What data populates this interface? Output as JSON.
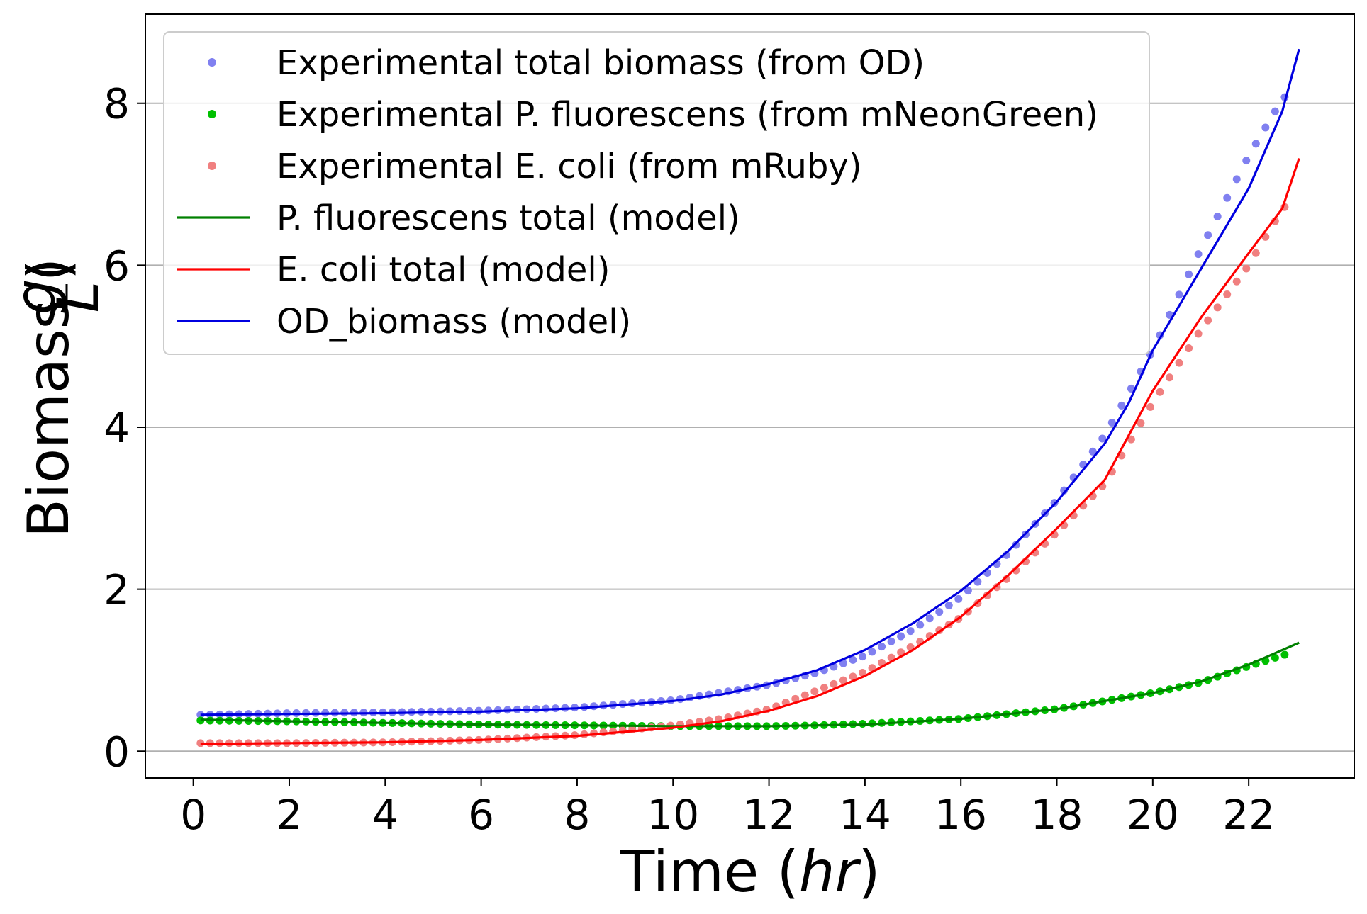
{
  "chart_data": {
    "type": "line",
    "title": "",
    "xlabel": {
      "text": "Time (",
      "italic": "hr",
      "close": ")"
    },
    "ylabel": {
      "text": "Biomass (",
      "numerator": "g",
      "denominator": "L",
      "close": ")"
    },
    "xlim": [
      -1,
      24.2
    ],
    "ylim": [
      -0.33,
      9.1
    ],
    "xticks": [
      0,
      2,
      4,
      6,
      8,
      10,
      12,
      14,
      16,
      18,
      20,
      22
    ],
    "yticks": [
      0,
      2,
      4,
      6,
      8
    ],
    "grid": "y",
    "legend": "top-left",
    "scatter_series": [
      {
        "name": "Experimental total biomass (from OD)",
        "color": "#8080f0",
        "anchors": [
          [
            0.15,
            0.45
          ],
          [
            2,
            0.47
          ],
          [
            4,
            0.48
          ],
          [
            6,
            0.5
          ],
          [
            8,
            0.54
          ],
          [
            10,
            0.63
          ],
          [
            12,
            0.82
          ],
          [
            13,
            0.97
          ],
          [
            14,
            1.18
          ],
          [
            15,
            1.5
          ],
          [
            16,
            1.9
          ],
          [
            17,
            2.45
          ],
          [
            18,
            3.1
          ],
          [
            19,
            3.9
          ],
          [
            20,
            4.95
          ],
          [
            21,
            6.2
          ],
          [
            22,
            7.35
          ],
          [
            22.6,
            7.95
          ],
          [
            22.9,
            8.2
          ]
        ]
      },
      {
        "name": "Experimental P. fluorescens (from mNeonGreen)",
        "color": "#00c000",
        "anchors": [
          [
            0.15,
            0.38
          ],
          [
            2,
            0.37
          ],
          [
            4,
            0.35
          ],
          [
            6,
            0.33
          ],
          [
            8,
            0.32
          ],
          [
            10,
            0.31
          ],
          [
            12,
            0.31
          ],
          [
            13,
            0.32
          ],
          [
            14,
            0.34
          ],
          [
            16,
            0.4
          ],
          [
            18,
            0.52
          ],
          [
            20,
            0.72
          ],
          [
            21,
            0.85
          ],
          [
            22,
            1.05
          ],
          [
            22.9,
            1.22
          ]
        ]
      },
      {
        "name": "Experimental E. coli (from mRuby)",
        "color": "#f08080",
        "anchors": [
          [
            0.15,
            0.1
          ],
          [
            2,
            0.1
          ],
          [
            4,
            0.11
          ],
          [
            6,
            0.14
          ],
          [
            8,
            0.2
          ],
          [
            10,
            0.32
          ],
          [
            11,
            0.4
          ],
          [
            12,
            0.52
          ],
          [
            13,
            0.75
          ],
          [
            14,
            0.98
          ],
          [
            15,
            1.3
          ],
          [
            16,
            1.65
          ],
          [
            17,
            2.15
          ],
          [
            18,
            2.7
          ],
          [
            19,
            3.3
          ],
          [
            19.5,
            3.8
          ],
          [
            20,
            4.3
          ],
          [
            21,
            5.2
          ],
          [
            22,
            6.0
          ],
          [
            22.5,
            6.5
          ],
          [
            22.9,
            6.85
          ]
        ]
      }
    ],
    "line_series": [
      {
        "name": "P. fluorescens total (model)",
        "color": "#008000",
        "points": [
          [
            0.15,
            0.39
          ],
          [
            2,
            0.37
          ],
          [
            4,
            0.35
          ],
          [
            6,
            0.33
          ],
          [
            8,
            0.32
          ],
          [
            10,
            0.31
          ],
          [
            12,
            0.31
          ],
          [
            14,
            0.33
          ],
          [
            16,
            0.4
          ],
          [
            18,
            0.52
          ],
          [
            20,
            0.72
          ],
          [
            21,
            0.86
          ],
          [
            22,
            1.07
          ],
          [
            23.05,
            1.34
          ]
        ]
      },
      {
        "name": "E. coli total (model)",
        "color": "#ff0000",
        "points": [
          [
            0.15,
            0.09
          ],
          [
            2,
            0.1
          ],
          [
            4,
            0.11
          ],
          [
            6,
            0.14
          ],
          [
            8,
            0.19
          ],
          [
            10,
            0.29
          ],
          [
            11,
            0.37
          ],
          [
            12,
            0.5
          ],
          [
            13,
            0.68
          ],
          [
            14,
            0.93
          ],
          [
            15,
            1.25
          ],
          [
            16,
            1.66
          ],
          [
            17,
            2.18
          ],
          [
            18,
            2.75
          ],
          [
            19,
            3.35
          ],
          [
            19.5,
            3.9
          ],
          [
            20,
            4.45
          ],
          [
            21,
            5.35
          ],
          [
            22,
            6.15
          ],
          [
            22.7,
            6.7
          ],
          [
            23.05,
            7.32
          ]
        ]
      },
      {
        "name": "OD_biomass (model)",
        "color": "#0000e0",
        "points": [
          [
            0.15,
            0.45
          ],
          [
            2,
            0.46
          ],
          [
            4,
            0.47
          ],
          [
            6,
            0.49
          ],
          [
            8,
            0.53
          ],
          [
            10,
            0.62
          ],
          [
            11,
            0.7
          ],
          [
            12,
            0.83
          ],
          [
            13,
            1.0
          ],
          [
            14,
            1.25
          ],
          [
            15,
            1.58
          ],
          [
            16,
            1.98
          ],
          [
            17,
            2.48
          ],
          [
            18,
            3.08
          ],
          [
            19,
            3.8
          ],
          [
            19.5,
            4.3
          ],
          [
            20,
            4.95
          ],
          [
            21,
            5.95
          ],
          [
            22,
            6.95
          ],
          [
            22.7,
            7.9
          ],
          [
            23.05,
            8.67
          ]
        ]
      }
    ]
  }
}
